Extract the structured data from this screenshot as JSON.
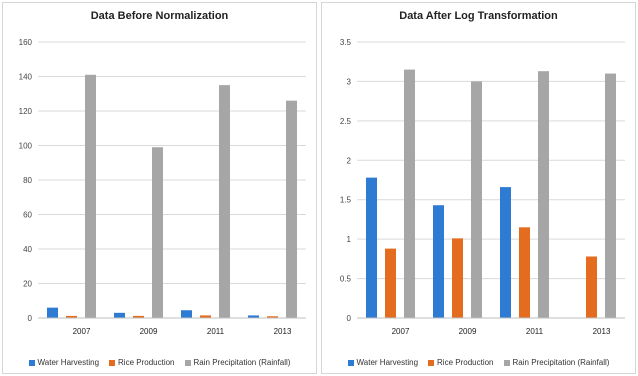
{
  "chart_data": [
    {
      "type": "bar",
      "title": "Data Before Normalization",
      "categories": [
        "2007",
        "2009",
        "2011",
        "2013"
      ],
      "series": [
        {
          "name": "Water Harvesting",
          "color": "#2e7bd3",
          "values": [
            6,
            3,
            4.5,
            1.5
          ]
        },
        {
          "name": "Rice Production",
          "color": "#e36c1f",
          "values": [
            1.2,
            1.2,
            1.5,
            1
          ]
        },
        {
          "name": "Rain Precipitation (Rainfall)",
          "color": "#a6a6a6",
          "values": [
            141,
            99,
            135,
            126
          ]
        }
      ],
      "yticks": [
        "0",
        "20",
        "40",
        "60",
        "80",
        "100",
        "120",
        "140",
        "160"
      ],
      "ylim": [
        0,
        160
      ],
      "xlabel": "",
      "ylabel": "",
      "grid": true,
      "legend": "bottom"
    },
    {
      "type": "bar",
      "title": "Data After Log Transformation",
      "categories": [
        "2007",
        "2009",
        "2011",
        "2013"
      ],
      "series": [
        {
          "name": "Water Harvesting",
          "color": "#2e7bd3",
          "values": [
            1.78,
            1.43,
            1.66,
            0
          ]
        },
        {
          "name": "Rice Production",
          "color": "#e36c1f",
          "values": [
            0.88,
            1.01,
            1.15,
            0.78
          ]
        },
        {
          "name": "Rain Precipitation (Rainfall)",
          "color": "#a6a6a6",
          "values": [
            3.15,
            3.0,
            3.13,
            3.1
          ]
        }
      ],
      "yticks": [
        "0",
        "0.5",
        "1",
        "1.5",
        "2",
        "2.5",
        "3",
        "3.5"
      ],
      "ylim": [
        0,
        3.5
      ],
      "xlabel": "",
      "ylabel": "",
      "grid": true,
      "legend": "bottom"
    }
  ]
}
